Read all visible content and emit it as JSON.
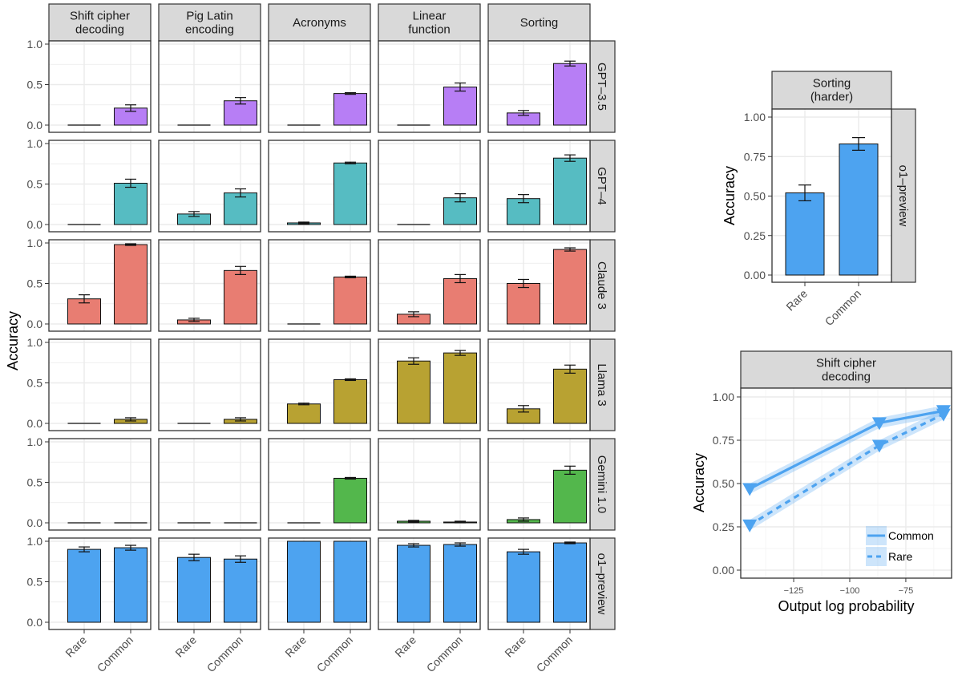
{
  "chart_data": [
    {
      "type": "bar",
      "title": "",
      "ylabel": "Accuracy",
      "xlabel": "",
      "ylim": [
        0,
        1.0
      ],
      "yticks": [
        "0.0",
        "0.5",
        "1.0"
      ],
      "categories": [
        "Rare",
        "Common"
      ],
      "grid": true,
      "facet_columns": [
        "Shift cipher\ndecoding",
        "Pig Latin\nencoding",
        "Acronyms",
        "Linear\nfunction",
        "Sorting"
      ],
      "facet_rows": [
        {
          "name": "GPT–3.5",
          "color": "#B77EF5",
          "values": [
            [
              0.0,
              0.21
            ],
            [
              0.0,
              0.3
            ],
            [
              0.0,
              0.39
            ],
            [
              0.0,
              0.47
            ],
            [
              0.15,
              0.76
            ]
          ],
          "errors": [
            [
              0.0,
              0.04
            ],
            [
              0.0,
              0.04
            ],
            [
              0.0,
              0.01
            ],
            [
              0.0,
              0.05
            ],
            [
              0.03,
              0.03
            ]
          ]
        },
        {
          "name": "GPT–4",
          "color": "#56BCC2",
          "values": [
            [
              0.0,
              0.51
            ],
            [
              0.13,
              0.39
            ],
            [
              0.02,
              0.76
            ],
            [
              0.0,
              0.33
            ],
            [
              0.32,
              0.82
            ]
          ],
          "errors": [
            [
              0.0,
              0.05
            ],
            [
              0.03,
              0.05
            ],
            [
              0.01,
              0.01
            ],
            [
              0.0,
              0.05
            ],
            [
              0.05,
              0.04
            ]
          ]
        },
        {
          "name": "Claude 3",
          "color": "#E87D72",
          "values": [
            [
              0.31,
              0.98
            ],
            [
              0.05,
              0.66
            ],
            [
              0.0,
              0.58
            ],
            [
              0.12,
              0.56
            ],
            [
              0.5,
              0.92
            ]
          ],
          "errors": [
            [
              0.05,
              0.01
            ],
            [
              0.02,
              0.05
            ],
            [
              0.0,
              0.01
            ],
            [
              0.03,
              0.05
            ],
            [
              0.05,
              0.02
            ]
          ]
        },
        {
          "name": "Llama 3",
          "color": "#B8A232",
          "values": [
            [
              0.0,
              0.05
            ],
            [
              0.0,
              0.05
            ],
            [
              0.24,
              0.54
            ],
            [
              0.77,
              0.87
            ],
            [
              0.18,
              0.67
            ]
          ],
          "errors": [
            [
              0.0,
              0.02
            ],
            [
              0.0,
              0.02
            ],
            [
              0.01,
              0.01
            ],
            [
              0.04,
              0.03
            ],
            [
              0.04,
              0.05
            ]
          ]
        },
        {
          "name": "Gemini 1.0",
          "color": "#53B74C",
          "values": [
            [
              0.0,
              0.0
            ],
            [
              0.0,
              0.0
            ],
            [
              0.0,
              0.55
            ],
            [
              0.02,
              0.01
            ],
            [
              0.04,
              0.65
            ]
          ],
          "errors": [
            [
              0.0,
              0.0
            ],
            [
              0.0,
              0.0
            ],
            [
              0.0,
              0.01
            ],
            [
              0.01,
              0.01
            ],
            [
              0.02,
              0.05
            ]
          ]
        },
        {
          "name": "o1–preview",
          "color": "#4DA3F0",
          "values": [
            [
              0.9,
              0.92
            ],
            [
              0.8,
              0.78
            ],
            [
              1.0,
              1.0
            ],
            [
              0.95,
              0.96
            ],
            [
              0.87,
              0.98
            ]
          ],
          "errors": [
            [
              0.03,
              0.03
            ],
            [
              0.04,
              0.04
            ],
            [
              0.0,
              0.0
            ],
            [
              0.02,
              0.02
            ],
            [
              0.03,
              0.01
            ]
          ]
        }
      ]
    },
    {
      "type": "bar",
      "title": "",
      "facet_column": "Sorting\n(harder)",
      "facet_row": "o1–preview",
      "ylabel": "Accuracy",
      "ylim": [
        0,
        1.0
      ],
      "yticks": [
        "0.00",
        "0.25",
        "0.50",
        "0.75",
        "1.00"
      ],
      "categories": [
        "Rare",
        "Common"
      ],
      "values": [
        0.52,
        0.83
      ],
      "errors": [
        0.05,
        0.04
      ],
      "color": "#4DA3F0",
      "grid": true
    },
    {
      "type": "line",
      "title": "",
      "facet_column": "Shift cipher\ndecoding",
      "xlabel": "Output log probability",
      "ylabel": "Accuracy",
      "xlim": [
        -148.6,
        -54.6
      ],
      "ylim": [
        0,
        1.0
      ],
      "xticks": [
        "−125",
        "−100",
        "−75"
      ],
      "xtick_values": [
        -125,
        -100,
        -75
      ],
      "yticks": [
        "0.00",
        "0.25",
        "0.50",
        "0.75",
        "1.00"
      ],
      "grid": true,
      "legend": "bottom-right",
      "series": [
        {
          "name": "Common",
          "style": "solid",
          "color": "#4DA3F0",
          "x": [
            -144.6,
            -86.8,
            -58.2
          ],
          "y": [
            0.47,
            0.85,
            0.92
          ],
          "band": 0.03
        },
        {
          "name": "Rare",
          "style": "dashed",
          "color": "#4DA3F0",
          "x": [
            -144.6,
            -86.8,
            -58.2
          ],
          "y": [
            0.26,
            0.72,
            0.9
          ],
          "band": 0.03
        }
      ]
    }
  ]
}
